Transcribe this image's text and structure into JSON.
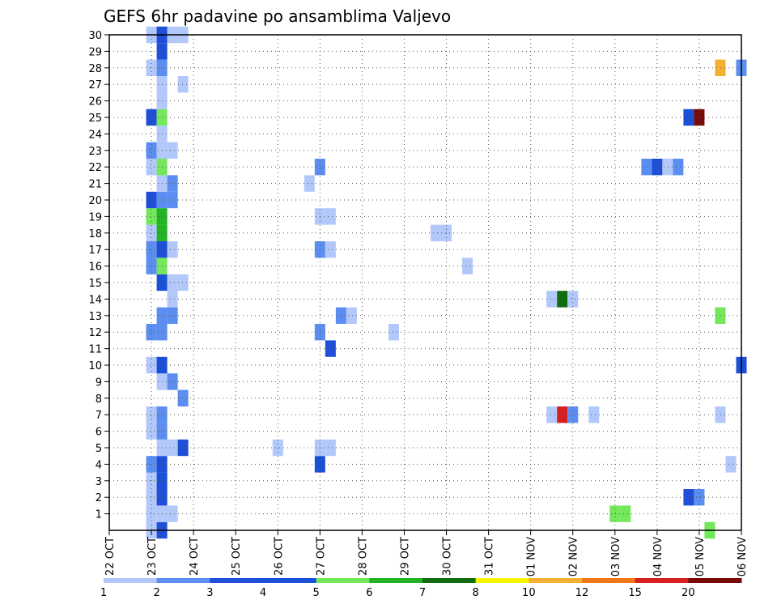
{
  "chart_data": {
    "type": "heatmap",
    "title": "GEFS 6hr padavine po ansamblima Valjevo",
    "xlabel": "",
    "ylabel": "",
    "y_members": [
      1,
      2,
      3,
      4,
      5,
      6,
      7,
      8,
      9,
      10,
      11,
      12,
      13,
      14,
      15,
      16,
      17,
      18,
      19,
      20,
      21,
      22,
      23,
      24,
      25,
      26,
      27,
      28,
      29,
      30
    ],
    "x_tick_labels": [
      "22 OCT",
      "23 OCT",
      "24 OCT",
      "25 OCT",
      "26 OCT",
      "27 OCT",
      "28 OCT",
      "29 OCT",
      "30 OCT",
      "31 OCT",
      "01 NOV",
      "02 NOV",
      "03 NOV",
      "04 NOV",
      "05 NOV",
      "06 NOV"
    ],
    "x_range_days": [
      0,
      15
    ],
    "grid": "dotted",
    "colorbar": {
      "boundaries": [
        "1",
        "2",
        "3",
        "4",
        "5",
        "6",
        "7",
        "8",
        "10",
        "12",
        "15",
        "20"
      ],
      "colors": [
        "#b3c8fa",
        "#5b8ef0",
        "#1f4fd8",
        "#1a50d8",
        "#72e85a",
        "#22b422",
        "#0e6e0e",
        "#f5f500",
        "#f5b032",
        "#f07818",
        "#d62020",
        "#7a0a0a"
      ]
    },
    "cells": [
      {
        "member": 0,
        "day": 1.0,
        "value": 1.5
      },
      {
        "member": 0,
        "day": 1.25,
        "value": 3.5
      },
      {
        "member": 0,
        "day": 14.25,
        "value": 5.5
      },
      {
        "member": 1,
        "day": 1.0,
        "value": 1.5
      },
      {
        "member": 1,
        "day": 1.25,
        "value": 1.5
      },
      {
        "member": 1,
        "day": 1.5,
        "value": 1.5
      },
      {
        "member": 1,
        "day": 12.0,
        "value": 5.5
      },
      {
        "member": 1,
        "day": 12.25,
        "value": 5.5
      },
      {
        "member": 2,
        "day": 1.0,
        "value": 1.5
      },
      {
        "member": 2,
        "day": 1.25,
        "value": 3.5
      },
      {
        "member": 2,
        "day": 13.75,
        "value": 3.5
      },
      {
        "member": 2,
        "day": 14.0,
        "value": 2.5
      },
      {
        "member": 3,
        "day": 1.0,
        "value": 1.5
      },
      {
        "member": 3,
        "day": 1.25,
        "value": 4.5
      },
      {
        "member": 4,
        "day": 1.0,
        "value": 2.5
      },
      {
        "member": 4,
        "day": 1.25,
        "value": 3.5
      },
      {
        "member": 4,
        "day": 5.0,
        "value": 4.5
      },
      {
        "member": 4,
        "day": 14.75,
        "value": 1.5
      },
      {
        "member": 5,
        "day": 1.25,
        "value": 1.5
      },
      {
        "member": 5,
        "day": 1.5,
        "value": 1.5
      },
      {
        "member": 5,
        "day": 1.75,
        "value": 3.5
      },
      {
        "member": 5,
        "day": 4.0,
        "value": 1.5
      },
      {
        "member": 5,
        "day": 5.0,
        "value": 1.5
      },
      {
        "member": 5,
        "day": 5.25,
        "value": 1.5
      },
      {
        "member": 6,
        "day": 1.0,
        "value": 1.5
      },
      {
        "member": 6,
        "day": 1.25,
        "value": 2.5
      },
      {
        "member": 7,
        "day": 1.0,
        "value": 1.5
      },
      {
        "member": 7,
        "day": 1.25,
        "value": 2.5
      },
      {
        "member": 7,
        "day": 10.5,
        "value": 1.5
      },
      {
        "member": 7,
        "day": 10.75,
        "value": 15.5
      },
      {
        "member": 7,
        "day": 11.0,
        "value": 2.5
      },
      {
        "member": 7,
        "day": 11.5,
        "value": 1.5
      },
      {
        "member": 7,
        "day": 14.5,
        "value": 1.5
      },
      {
        "member": 8,
        "day": 1.75,
        "value": 2.5
      },
      {
        "member": 9,
        "day": 1.25,
        "value": 1.5
      },
      {
        "member": 9,
        "day": 1.5,
        "value": 2.5
      },
      {
        "member": 10,
        "day": 1.0,
        "value": 1.5
      },
      {
        "member": 10,
        "day": 1.25,
        "value": 4.5
      },
      {
        "member": 10,
        "day": 15.0,
        "value": 4.5
      },
      {
        "member": 11,
        "day": 5.25,
        "value": 3.5
      },
      {
        "member": 12,
        "day": 1.0,
        "value": 2.5
      },
      {
        "member": 12,
        "day": 1.25,
        "value": 2.5
      },
      {
        "member": 12,
        "day": 5.0,
        "value": 2.5
      },
      {
        "member": 12,
        "day": 6.75,
        "value": 1.5
      },
      {
        "member": 13,
        "day": 1.25,
        "value": 2.5
      },
      {
        "member": 13,
        "day": 1.5,
        "value": 2.5
      },
      {
        "member": 13,
        "day": 5.5,
        "value": 2.5
      },
      {
        "member": 13,
        "day": 5.75,
        "value": 1.5
      },
      {
        "member": 13,
        "day": 14.5,
        "value": 5.5
      },
      {
        "member": 14,
        "day": 1.5,
        "value": 1.5
      },
      {
        "member": 14,
        "day": 10.5,
        "value": 1.5
      },
      {
        "member": 14,
        "day": 10.75,
        "value": 7.5
      },
      {
        "member": 14,
        "day": 11.0,
        "value": 1.5
      },
      {
        "member": 15,
        "day": 1.25,
        "value": 4.5
      },
      {
        "member": 15,
        "day": 1.5,
        "value": 1.5
      },
      {
        "member": 15,
        "day": 1.75,
        "value": 1.5
      },
      {
        "member": 16,
        "day": 1.0,
        "value": 2.5
      },
      {
        "member": 16,
        "day": 1.25,
        "value": 5.5
      },
      {
        "member": 16,
        "day": 8.5,
        "value": 1.5
      },
      {
        "member": 17,
        "day": 1.0,
        "value": 2.5
      },
      {
        "member": 17,
        "day": 1.25,
        "value": 3.5
      },
      {
        "member": 17,
        "day": 1.5,
        "value": 1.5
      },
      {
        "member": 17,
        "day": 5.0,
        "value": 2.5
      },
      {
        "member": 17,
        "day": 5.25,
        "value": 1.5
      },
      {
        "member": 18,
        "day": 1.0,
        "value": 1.5
      },
      {
        "member": 18,
        "day": 1.25,
        "value": 6.5
      },
      {
        "member": 18,
        "day": 7.75,
        "value": 1.5
      },
      {
        "member": 18,
        "day": 8.0,
        "value": 1.5
      },
      {
        "member": 19,
        "day": 1.0,
        "value": 5.5
      },
      {
        "member": 19,
        "day": 1.25,
        "value": 6.5
      },
      {
        "member": 19,
        "day": 5.0,
        "value": 1.5
      },
      {
        "member": 19,
        "day": 5.25,
        "value": 1.5
      },
      {
        "member": 20,
        "day": 1.0,
        "value": 3.5
      },
      {
        "member": 20,
        "day": 1.25,
        "value": 2.5
      },
      {
        "member": 20,
        "day": 1.5,
        "value": 2.5
      },
      {
        "member": 21,
        "day": 1.25,
        "value": 1.5
      },
      {
        "member": 21,
        "day": 1.5,
        "value": 2.5
      },
      {
        "member": 21,
        "day": 4.75,
        "value": 1.5
      },
      {
        "member": 22,
        "day": 1.0,
        "value": 1.5
      },
      {
        "member": 22,
        "day": 1.25,
        "value": 5.5
      },
      {
        "member": 22,
        "day": 5.0,
        "value": 2.5
      },
      {
        "member": 22,
        "day": 12.75,
        "value": 2.5
      },
      {
        "member": 22,
        "day": 13.0,
        "value": 3.5
      },
      {
        "member": 22,
        "day": 13.25,
        "value": 1.5
      },
      {
        "member": 22,
        "day": 13.5,
        "value": 2.5
      },
      {
        "member": 23,
        "day": 1.0,
        "value": 2.5
      },
      {
        "member": 23,
        "day": 1.25,
        "value": 1.5
      },
      {
        "member": 23,
        "day": 1.5,
        "value": 1.5
      },
      {
        "member": 24,
        "day": 1.25,
        "value": 1.5
      },
      {
        "member": 25,
        "day": 1.0,
        "value": 3.5
      },
      {
        "member": 25,
        "day": 1.25,
        "value": 5.5
      },
      {
        "member": 25,
        "day": 13.75,
        "value": 4.5
      },
      {
        "member": 25,
        "day": 14.0,
        "value": 20.5
      },
      {
        "member": 26,
        "day": 1.25,
        "value": 1.5
      },
      {
        "member": 27,
        "day": 1.25,
        "value": 1.5
      },
      {
        "member": 27,
        "day": 1.75,
        "value": 1.5
      },
      {
        "member": 28,
        "day": 1.0,
        "value": 1.5
      },
      {
        "member": 28,
        "day": 1.25,
        "value": 2.5
      },
      {
        "member": 28,
        "day": 14.5,
        "value": 10.5
      },
      {
        "member": 28,
        "day": 15.0,
        "value": 2.5
      },
      {
        "member": 29,
        "day": 1.25,
        "value": 3.5
      },
      {
        "member": 30,
        "day": 1.0,
        "value": 1.5
      },
      {
        "member": 30,
        "day": 1.25,
        "value": 3.5
      },
      {
        "member": 30,
        "day": 1.5,
        "value": 1.5
      },
      {
        "member": 30,
        "day": 1.75,
        "value": 1.5
      }
    ]
  }
}
